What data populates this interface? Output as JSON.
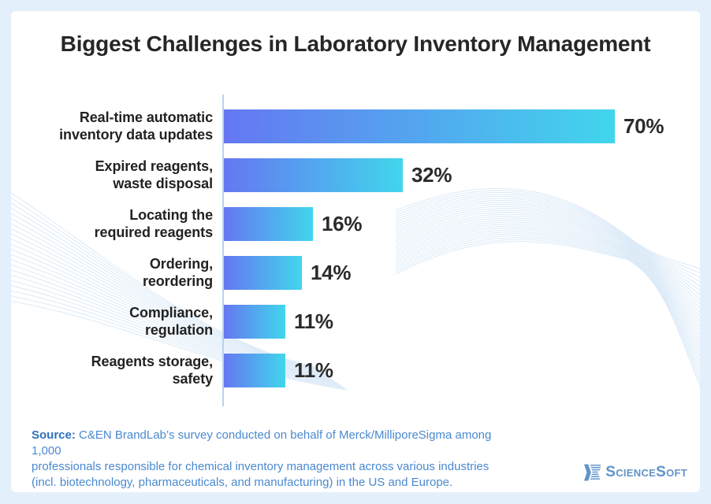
{
  "page": {
    "background_color": "#e4effc",
    "card_color": "#ffffff"
  },
  "title": "Biggest Challenges in Laboratory Inventory Management",
  "chart_data": {
    "type": "bar",
    "orientation": "horizontal",
    "title": "Biggest Challenges in Laboratory Inventory Management",
    "unit": "%",
    "xlim": [
      0,
      70
    ],
    "grid": false,
    "legend": false,
    "bar_gradient": [
      "#6577f2",
      "#41d6ec"
    ],
    "categories": [
      "Real-time automatic inventory data updates",
      "Expired reagents, waste disposal",
      "Locating the required reagents",
      "Ordering, reordering",
      "Compliance, regulation",
      "Reagents storage, safety"
    ],
    "values": [
      70,
      32,
      16,
      14,
      11,
      11
    ],
    "rows": [
      {
        "label": [
          "Real-time automatic",
          "inventory data updates"
        ],
        "value": 70,
        "pct": "70%"
      },
      {
        "label": [
          "Expired reagents,",
          "waste disposal"
        ],
        "value": 32,
        "pct": "32%"
      },
      {
        "label": [
          "Locating the",
          "required reagents"
        ],
        "value": 16,
        "pct": "16%"
      },
      {
        "label": [
          "Ordering,",
          "reordering"
        ],
        "value": 14,
        "pct": "14%"
      },
      {
        "label": [
          "Compliance,",
          "regulation"
        ],
        "value": 11,
        "pct": "11%"
      },
      {
        "label": [
          "Reagents storage,",
          "safety"
        ],
        "value": 11,
        "pct": "11%"
      }
    ]
  },
  "source": {
    "prefix": "Source:",
    "line1": "C&EN BrandLab’s survey conducted on behalf of Merck/MilliporeSigma among 1,000",
    "line2": "professionals responsible for chemical inventory management across various industries",
    "line3": "(incl. biotechnology, pharmaceuticals, and manufacturing) in the US and Europe."
  },
  "logo": {
    "text": "ScienceSoft"
  },
  "colors": {
    "bar_start": "#6577f2",
    "bar_end": "#41d6ec",
    "axis": "#b5d3ef",
    "title_text": "#262626",
    "value_text": "#2b2b2b",
    "source_text": "#4a89d0",
    "source_prefix": "#2f6fbe",
    "logo": "#6193c9",
    "wave": "#d3e5f6"
  }
}
